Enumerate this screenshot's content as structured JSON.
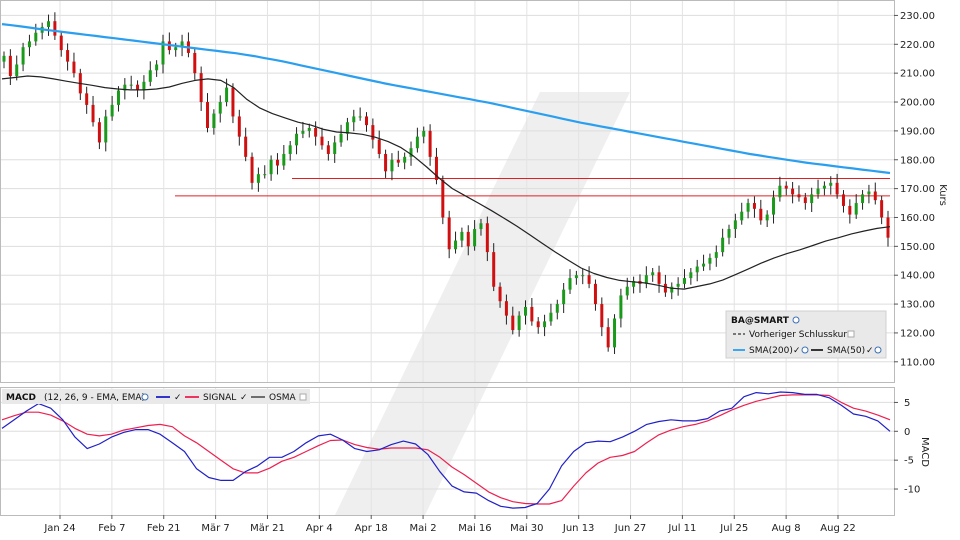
{
  "chart_data": {
    "type": "line",
    "price_panel": {
      "y_axis_title": "Kurs",
      "y_ticks": [
        "230.00",
        "220.00",
        "210.00",
        "200.00",
        "190.00",
        "180.00",
        "170.00",
        "160.00",
        "150.00",
        "140.00",
        "130.00",
        "120.00",
        "110.00"
      ],
      "y_tick_values": [
        230,
        220,
        210,
        200,
        190,
        180,
        170,
        160,
        150,
        140,
        130,
        120,
        110
      ],
      "ylim": [
        103,
        235
      ],
      "candle_closes": [
        216,
        209,
        213,
        219,
        221,
        224,
        226,
        228,
        223,
        218,
        214,
        210,
        203,
        199,
        193,
        186,
        195,
        199,
        204,
        206,
        206,
        204,
        207,
        211,
        213,
        221,
        218,
        219,
        221,
        217,
        210,
        200,
        191,
        196,
        200,
        205,
        195,
        188,
        181,
        172,
        175,
        175,
        180,
        178,
        182,
        185,
        189,
        190,
        191,
        188,
        185,
        182,
        186,
        189,
        193,
        195,
        195,
        192,
        187,
        182,
        176,
        180,
        179,
        181,
        184,
        188,
        190,
        181,
        173,
        160,
        149,
        152,
        155,
        150,
        156,
        158,
        148,
        136,
        131,
        126,
        121,
        126,
        129,
        124,
        122,
        124,
        127,
        130,
        135,
        139,
        140,
        140,
        137,
        130,
        122,
        115,
        125,
        133,
        136,
        138,
        137,
        140,
        141,
        137,
        134,
        136,
        137,
        139,
        141,
        143,
        144,
        146,
        148,
        153,
        156,
        159,
        162,
        165,
        163,
        159,
        161,
        167,
        171,
        170,
        168,
        167,
        165,
        168,
        170,
        171,
        172,
        168,
        164,
        161,
        165,
        168,
        169,
        166,
        160,
        153
      ],
      "sma200_series": [
        227,
        226.6,
        226.2,
        225.8,
        225.3,
        224.9,
        224.5,
        224.1,
        223.7,
        223.3,
        222.9,
        222.5,
        222.1,
        221.7,
        221.3,
        220.9,
        220.5,
        220.1,
        219.7,
        219.3,
        218.9,
        218.5,
        218.1,
        217.7,
        217.3,
        216.9,
        216.4,
        215.9,
        215.3,
        214.7,
        214.1,
        213.4,
        212.7,
        212.0,
        211.3,
        210.6,
        209.9,
        209.2,
        208.5,
        207.8,
        207.1,
        206.4,
        205.8,
        205.2,
        204.6,
        204.0,
        203.4,
        202.8,
        202.2,
        201.6,
        201.0,
        200.4,
        199.8,
        199.1,
        198.4,
        197.7,
        197.0,
        196.3,
        195.6,
        194.9,
        194.2,
        193.5,
        192.8,
        192.2,
        191.6,
        191.0,
        190.4,
        189.8,
        189.2,
        188.6,
        188.0,
        187.4,
        186.8,
        186.2,
        185.6,
        185.0,
        184.4,
        183.8,
        183.2,
        182.6,
        182.0,
        181.5,
        181.0,
        180.5,
        180.0,
        179.5,
        179.0,
        178.6,
        178.2,
        177.8,
        177.4,
        177.0,
        176.6,
        176.2,
        175.8,
        175.4
      ],
      "sma50_series": [
        208,
        208.5,
        209,
        208.7,
        208,
        207.2,
        206.5,
        205.8,
        205,
        204.5,
        204.2,
        204.2,
        204.5,
        205.2,
        206.5,
        207.5,
        208,
        207.5,
        205,
        201,
        198,
        196,
        194.5,
        193,
        192,
        190.5,
        189.6,
        189.3,
        188.8,
        187.8,
        186.3,
        184.2,
        181.2,
        177.5,
        173.5,
        170,
        167.5,
        165,
        162.5,
        159.8,
        157,
        154,
        151,
        148,
        145.2,
        142.5,
        140.6,
        139.2,
        138.2,
        137.7,
        137.3,
        136.5,
        135.5,
        135.2,
        136.1,
        137,
        138.3,
        140.2,
        142.2,
        144.2,
        146,
        147.5,
        148.8,
        150.3,
        151.8,
        153,
        154.3,
        155.3,
        156.2,
        156.8
      ],
      "resistance_lines": [
        173.5,
        167.5
      ],
      "legend": {
        "symbol": "BA@SMART",
        "prev_close": "Vorheriger Schlusskurs",
        "sma200": "SMA(200)",
        "sma50": "SMA(50)"
      },
      "colors": {
        "up": "#1a9a1a",
        "down": "#d01010",
        "sma200": "#2a9ff0",
        "sma50": "#222222",
        "resistance": "#e02020"
      }
    },
    "macd_panel": {
      "y_axis_title": "MACD",
      "y_ticks": [
        "5",
        "0",
        "-5",
        "-10"
      ],
      "y_tick_values": [
        5,
        0,
        -5,
        -10
      ],
      "ylim": [
        -14.5,
        7.5
      ],
      "legend": {
        "macd": "MACD",
        "params": "(12, 26, 9 - EMA, EMA)",
        "signal": "SIGNAL",
        "osma": "OSMA"
      },
      "macd_series": [
        0.5,
        2,
        3.5,
        4.8,
        4,
        2,
        -1,
        -3,
        -2.2,
        -1,
        -0.2,
        0.3,
        0.3,
        -0.5,
        -2,
        -3.5,
        -6.5,
        -8,
        -8.5,
        -8.5,
        -7,
        -6,
        -4.5,
        -4.5,
        -3.5,
        -2,
        -0.8,
        -0.5,
        -1.5,
        -3,
        -3.5,
        -3.2,
        -2.3,
        -1.7,
        -2.2,
        -4,
        -7,
        -9.5,
        -10.5,
        -10.7,
        -12,
        -13,
        -13.3,
        -13.2,
        -12.5,
        -10,
        -6,
        -3.5,
        -2,
        -1.7,
        -1.8,
        -1,
        0,
        1.2,
        1.7,
        2,
        1.8,
        1.8,
        2.2,
        3.5,
        4,
        6,
        6.7,
        6.5,
        6.8,
        6.7,
        6.4,
        6.4,
        5.8,
        4.5,
        3,
        2.6,
        1.8,
        0
      ],
      "signal_series": [
        2,
        2.7,
        3.3,
        3.3,
        2.8,
        1.8,
        0.5,
        -0.5,
        -0.8,
        -0.5,
        0.2,
        0.6,
        1,
        1.2,
        0.8,
        -0.8,
        -2,
        -3.5,
        -5,
        -6.5,
        -7.2,
        -7.2,
        -6.4,
        -5.2,
        -4.5,
        -3.5,
        -2.5,
        -1.6,
        -1.5,
        -2.3,
        -2.8,
        -3.1,
        -2.9,
        -2.9,
        -2.9,
        -3.2,
        -4.5,
        -6.2,
        -7.5,
        -9,
        -10.5,
        -11.5,
        -12.2,
        -12.5,
        -12.6,
        -12.6,
        -12,
        -9.5,
        -7.2,
        -5.5,
        -4.5,
        -4.2,
        -3.5,
        -2,
        -0.6,
        0.2,
        0.8,
        1.2,
        1.8,
        2.7,
        3.7,
        4.5,
        5.2,
        5.7,
        6.2,
        6.3,
        6.3,
        6.3,
        6.2,
        5,
        4,
        3.5,
        2.8,
        2
      ],
      "colors": {
        "macd": "#2020c8",
        "signal": "#ee2050",
        "osma": "#444444"
      }
    },
    "x_axis": {
      "tick_labels": [
        "Jan 24",
        "Feb 7",
        "Feb 21",
        "Mär 7",
        "Mär 21",
        "Apr 4",
        "Apr 18",
        "Mai 2",
        "Mai 16",
        "Mai 30",
        "Jun 13",
        "Jun 27",
        "Jul 11",
        "Jul 25",
        "Aug 8",
        "Aug 22"
      ]
    }
  }
}
